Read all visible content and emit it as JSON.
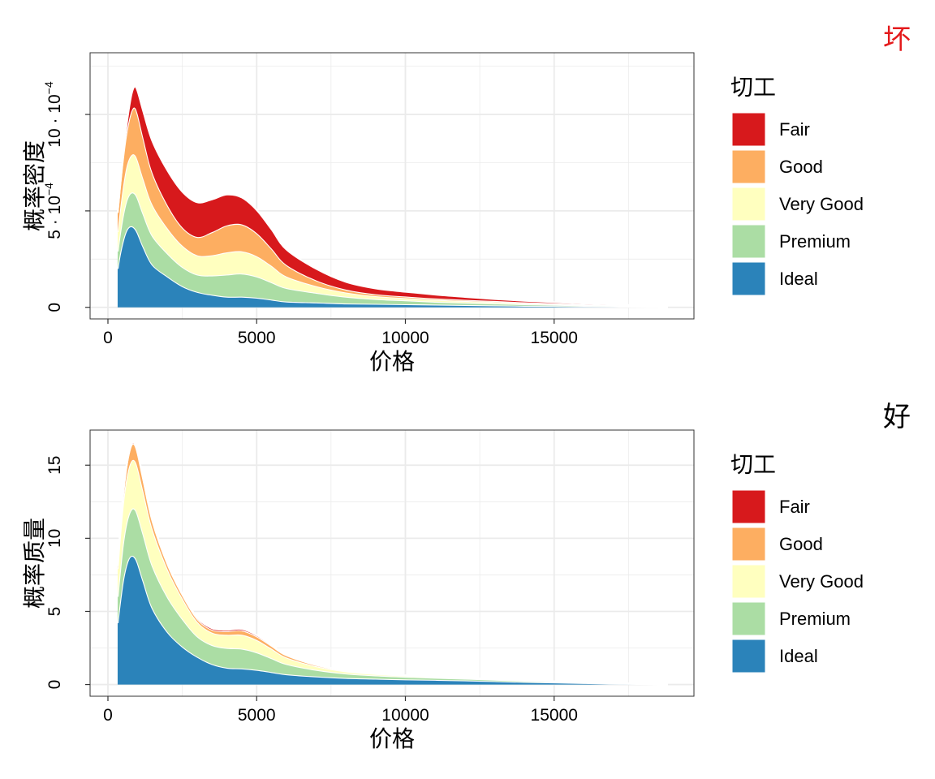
{
  "figure": {
    "panels": [
      {
        "tag": "坏",
        "tag_color": "#e41a1c"
      },
      {
        "tag": "好",
        "tag_color": "#000000"
      }
    ]
  },
  "colors": {
    "Fair": "#d7191c",
    "Good": "#fdae61",
    "Very Good": "#ffffbf",
    "Premium": "#abdda4",
    "Ideal": "#2b83ba",
    "gridline": "#ebebeb",
    "outline": "#ffffff"
  },
  "chart_data": [
    {
      "type": "area",
      "stacked": true,
      "title": "坏",
      "xlabel": "价格",
      "ylabel": "概率密度",
      "xlim": [
        -600,
        19700
      ],
      "ylim": [
        -6e-05,
        0.00132
      ],
      "x_ticks": [
        0,
        5000,
        10000,
        15000
      ],
      "x_tick_labels": [
        "0",
        "5000",
        "10000",
        "15000"
      ],
      "y_ticks": [
        0,
        0.0005,
        0.001
      ],
      "y_tick_labels": [
        {
          "base": "0",
          "exp": ""
        },
        {
          "base": "5 · 10",
          "exp": "−4"
        },
        {
          "base": "10 · 10",
          "exp": "−4"
        }
      ],
      "legend_title": "切工",
      "legend_position": "right",
      "x": [
        326,
        400,
        500,
        600,
        700,
        800,
        900,
        1000,
        1200,
        1500,
        2000,
        2500,
        3000,
        3500,
        4000,
        4500,
        5000,
        5500,
        6000,
        7000,
        8000,
        9000,
        10000,
        11000,
        12000,
        13000,
        14000,
        15000,
        16000,
        17000,
        18000,
        18823
      ],
      "series": [
        {
          "name": "Ideal",
          "values": [
            0.0002,
            0.00027,
            0.00034,
            0.00039,
            0.000415,
            0.00042,
            0.00041,
            0.000385,
            0.00031,
            0.00022,
            0.00016,
            0.00011,
            8e-05,
            6.5e-05,
            5.5e-05,
            5.5e-05,
            5e-05,
            4e-05,
            3e-05,
            2.5e-05,
            2e-05,
            1.8e-05,
            1.6e-05,
            1.4e-05,
            1.2e-05,
            1e-05,
            8e-06,
            7e-06,
            5e-06,
            4e-06,
            2e-06,
            0.0
          ]
        },
        {
          "name": "Premium",
          "values": [
            9e-05,
            0.000105,
            0.00013,
            0.00015,
            0.000165,
            0.000175,
            0.00018,
            0.00018,
            0.00017,
            0.00015,
            0.00012,
            0.0001,
            9e-05,
            0.0001,
            0.000115,
            0.00012,
            0.00011,
            9e-05,
            7e-05,
            5e-05,
            3.5e-05,
            2.5e-05,
            2e-05,
            1.5e-05,
            1.2e-05,
            1e-05,
            8e-06,
            6e-06,
            5e-06,
            4e-06,
            2e-06,
            0.0
          ]
        },
        {
          "name": "Very Good",
          "values": [
            0.0001,
            0.00012,
            0.000145,
            0.00017,
            0.000185,
            0.000195,
            0.0002,
            0.000195,
            0.00018,
            0.00016,
            0.00013,
            0.00011,
            0.0001,
            0.000105,
            0.000115,
            0.000115,
            0.000105,
            8.5e-05,
            6e-05,
            3.5e-05,
            2.2e-05,
            1.5e-05,
            1.2e-05,
            1e-05,
            9e-06,
            8e-06,
            6e-06,
            5e-06,
            4e-06,
            3e-06,
            2e-06,
            0.0
          ]
        },
        {
          "name": "Good",
          "values": [
            0.0001,
            0.00012,
            0.000145,
            0.00017,
            0.0002,
            0.00023,
            0.000245,
            0.00024,
            0.00021,
            0.000165,
            0.00012,
            9.5e-05,
            9.5e-05,
            0.00012,
            0.00014,
            0.00014,
            0.00012,
            9e-05,
            6e-05,
            3e-05,
            1.5e-05,
            1e-05,
            8e-06,
            7e-06,
            6e-06,
            5e-06,
            4e-06,
            3e-06,
            2e-06,
            1e-06,
            1e-06,
            0.0
          ]
        },
        {
          "name": "Fair",
          "values": [
            0.0,
            0.0,
            1e-05,
            3e-05,
            6e-05,
            9e-05,
            0.00011,
            0.00012,
            0.00014,
            0.000165,
            0.00018,
            0.000185,
            0.00018,
            0.00017,
            0.00016,
            0.00014,
            0.00012,
            0.0001,
            8e-05,
            6e-05,
            4e-05,
            3e-05,
            2.5e-05,
            2e-05,
            1.5e-05,
            1e-05,
            8e-06,
            6e-06,
            4e-06,
            3e-06,
            2e-06,
            0.0
          ]
        }
      ]
    },
    {
      "type": "area",
      "stacked": true,
      "title": "好",
      "xlabel": "价格",
      "ylabel": "概率质量",
      "xlim": [
        -600,
        19700
      ],
      "ylim": [
        -0.8,
        17.4
      ],
      "x_ticks": [
        0,
        5000,
        10000,
        15000
      ],
      "x_tick_labels": [
        "0",
        "5000",
        "10000",
        "15000"
      ],
      "y_ticks": [
        0,
        5,
        10,
        15
      ],
      "y_tick_labels": [
        {
          "base": "0",
          "exp": ""
        },
        {
          "base": "5",
          "exp": ""
        },
        {
          "base": "10",
          "exp": ""
        },
        {
          "base": "15",
          "exp": ""
        }
      ],
      "legend_title": "切工",
      "legend_position": "right",
      "x": [
        326,
        400,
        500,
        600,
        700,
        800,
        900,
        1000,
        1200,
        1500,
        2000,
        2500,
        3000,
        3500,
        4000,
        4500,
        5000,
        5500,
        6000,
        7000,
        8000,
        9000,
        10000,
        11000,
        12000,
        13000,
        14000,
        15000,
        16000,
        17000,
        18000,
        18823
      ],
      "series": [
        {
          "name": "Ideal",
          "values": [
            4.2,
            5.5,
            7.0,
            8.0,
            8.6,
            8.8,
            8.7,
            8.3,
            7.0,
            5.2,
            3.6,
            2.6,
            1.9,
            1.4,
            1.15,
            1.1,
            1.0,
            0.85,
            0.7,
            0.55,
            0.45,
            0.4,
            0.35,
            0.32,
            0.28,
            0.23,
            0.18,
            0.14,
            0.1,
            0.06,
            0.03,
            0.0
          ]
        },
        {
          "name": "Premium",
          "values": [
            1.8,
            2.1,
            2.5,
            2.8,
            3.0,
            3.2,
            3.3,
            3.3,
            3.2,
            2.9,
            2.4,
            1.9,
            1.4,
            1.3,
            1.35,
            1.35,
            1.2,
            0.95,
            0.7,
            0.45,
            0.3,
            0.22,
            0.18,
            0.14,
            0.12,
            0.1,
            0.08,
            0.06,
            0.05,
            0.04,
            0.02,
            0.0
          ]
        },
        {
          "name": "Very Good",
          "values": [
            1.9,
            2.3,
            2.7,
            3.0,
            3.2,
            3.3,
            3.3,
            3.2,
            2.9,
            2.5,
            1.9,
            1.4,
            1.0,
            0.85,
            0.9,
            0.95,
            0.85,
            0.65,
            0.45,
            0.25,
            0.15,
            0.1,
            0.08,
            0.06,
            0.05,
            0.04,
            0.03,
            0.02,
            0.02,
            0.01,
            0.0,
            0.0
          ]
        },
        {
          "name": "Good",
          "values": [
            0.2,
            0.35,
            0.55,
            0.75,
            0.95,
            1.1,
            1.1,
            1.0,
            0.8,
            0.55,
            0.35,
            0.25,
            0.2,
            0.2,
            0.25,
            0.3,
            0.25,
            0.2,
            0.15,
            0.08,
            0.04,
            0.02,
            0.01,
            0.01,
            0.0,
            0.0,
            0.0,
            0.0,
            0.0,
            0.0,
            0.0,
            0.0
          ]
        },
        {
          "name": "Fair",
          "values": [
            0.0,
            0.0,
            0.0,
            0.02,
            0.05,
            0.07,
            0.07,
            0.06,
            0.05,
            0.05,
            0.06,
            0.07,
            0.08,
            0.1,
            0.1,
            0.1,
            0.08,
            0.05,
            0.03,
            0.02,
            0.01,
            0.0,
            0.0,
            0.0,
            0.0,
            0.0,
            0.0,
            0.0,
            0.0,
            0.0,
            0.0,
            0.0
          ]
        }
      ]
    }
  ]
}
